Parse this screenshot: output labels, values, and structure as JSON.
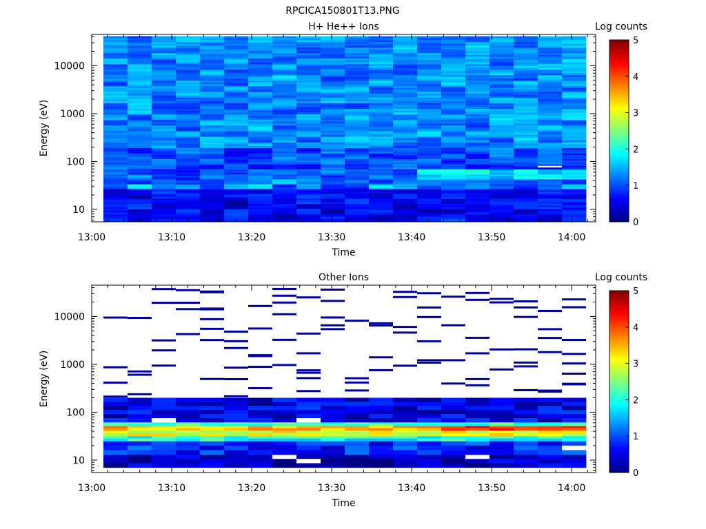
{
  "figure": {
    "filename_title": "RPCICA150801T13.PNG"
  },
  "colors": {
    "colormap": "jet",
    "background": "#ffffff",
    "axis": "#000000"
  },
  "chart_data": [
    {
      "type": "heatmap",
      "title": "H+ He++ Ions",
      "xlabel": "Time",
      "ylabel": "Energy (eV)",
      "x_ticks": [
        "13:00",
        "13:10",
        "13:20",
        "13:30",
        "13:40",
        "13:50",
        "14:00"
      ],
      "x_range_min": [
        0,
        63
      ],
      "y_scale": "log",
      "y_ticks": [
        "10",
        "100",
        "1000",
        "10000"
      ],
      "y_range_ev": [
        5.5,
        45000
      ],
      "colorbar": {
        "label": "Log counts",
        "ticks": [
          "0",
          "1",
          "2",
          "3",
          "4",
          "5"
        ],
        "range": [
          0,
          5
        ]
      },
      "time_bins_min": [
        1.5,
        4.7,
        7.9,
        11.1,
        14.3,
        17.5,
        20.7,
        23.9,
        27.1,
        30.3,
        33.5,
        36.7,
        39.9,
        43.1,
        46.3,
        49.5,
        52.7,
        55.9,
        59.1,
        62.3
      ],
      "energy_bins_ev": [
        7,
        9,
        11.5,
        15,
        19,
        24,
        30,
        38,
        48,
        61,
        78,
        100,
        130,
        170,
        220,
        290,
        380,
        500,
        650,
        850,
        1100,
        1450,
        1900,
        2500,
        3300,
        4300,
        5600,
        7300,
        9500,
        12400,
        16200,
        21000,
        27500,
        36000
      ],
      "typical_log_counts": {
        "below_25_eV": 0.6,
        "25_to_60_eV": 1.1,
        "60_to_200_eV": 1.0,
        "above_200_eV": 1.3
      },
      "features": [
        {
          "label": "enhanced band ~45-55 eV after 13:42",
          "log_counts": 1.8
        },
        {
          "label": "white (no data) cell ~13:57 at ~75 eV",
          "log_counts": null
        }
      ]
    },
    {
      "type": "heatmap",
      "title": "Other Ions",
      "xlabel": "Time",
      "ylabel": "Energy (eV)",
      "x_ticks": [
        "13:00",
        "13:10",
        "13:20",
        "13:30",
        "13:40",
        "13:50",
        "14:00"
      ],
      "x_range_min": [
        0,
        63
      ],
      "y_scale": "log",
      "y_ticks": [
        "10",
        "100",
        "1000",
        "10000"
      ],
      "y_range_ev": [
        5.5,
        45000
      ],
      "colorbar": {
        "label": "Log counts",
        "ticks": [
          "0",
          "1",
          "2",
          "3",
          "4",
          "5"
        ],
        "range": [
          0,
          5
        ]
      },
      "time_bins_min": [
        1.5,
        4.7,
        7.9,
        11.1,
        14.3,
        17.5,
        20.7,
        23.9,
        27.1,
        30.3,
        33.5,
        36.7,
        39.9,
        43.1,
        46.3,
        49.5,
        52.7,
        55.9,
        59.1,
        62.3
      ],
      "band_log_counts": [
        {
          "energy_ev": [
            7,
            13
          ],
          "log_counts": 0.3
        },
        {
          "energy_ev": [
            13,
            25
          ],
          "log_counts": 0.8
        },
        {
          "energy_ev": [
            25,
            32
          ],
          "log_counts": 2.0
        },
        {
          "energy_ev": [
            32,
            42
          ],
          "log_counts": 3.0
        },
        {
          "energy_ev": [
            42,
            52
          ],
          "log_counts": 3.4
        },
        {
          "energy_ev": [
            52,
            62
          ],
          "log_counts": 2.2
        },
        {
          "energy_ev": [
            62,
            200
          ],
          "log_counts": 0.5
        }
      ],
      "peak_log_counts_late": 4.3,
      "sparse_counts_above_200_ev": "isolated single-count lines (log counts ~0.1)"
    }
  ]
}
